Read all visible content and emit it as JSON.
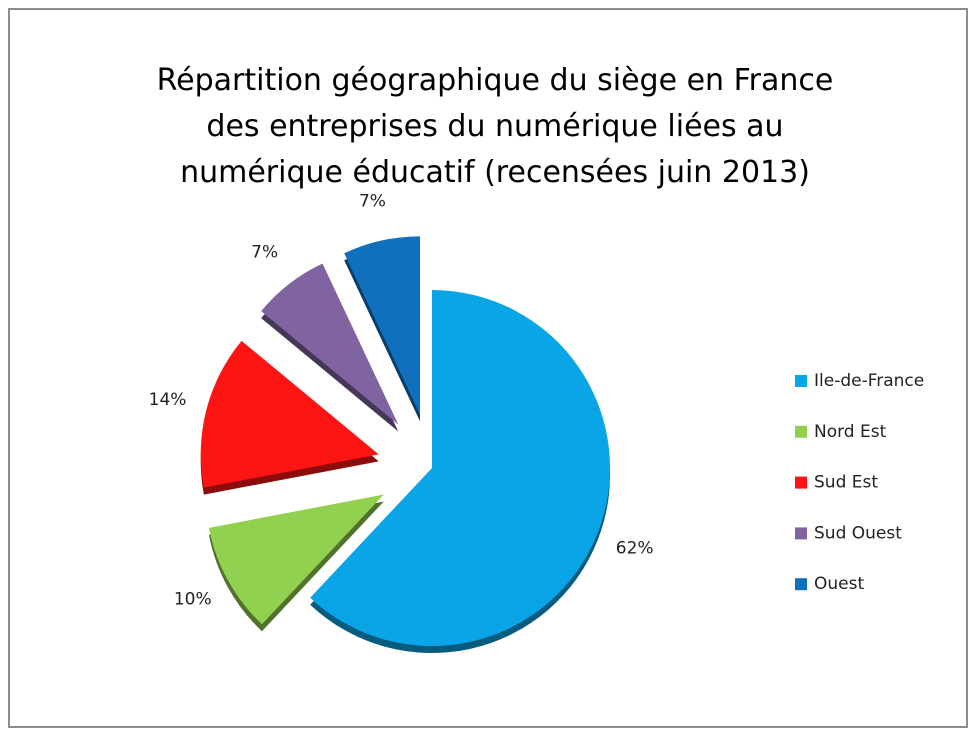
{
  "chart_data": {
    "type": "pie",
    "title": "Répartition géographique du siège en France des entreprises du numérique liées au numérique éducatif (recensées juin 2013)",
    "categories": [
      "Ile-de-France",
      "Nord Est",
      "Sud Est",
      "Sud Ouest",
      "Ouest"
    ],
    "values": [
      62,
      10,
      14,
      7,
      7
    ],
    "value_labels": [
      "62%",
      "10%",
      "14%",
      "7%",
      "7%"
    ],
    "colors": [
      "#0aa5e6",
      "#92d050",
      "#ff1414",
      "#8064a2",
      "#1170bd"
    ],
    "legend": "right"
  }
}
